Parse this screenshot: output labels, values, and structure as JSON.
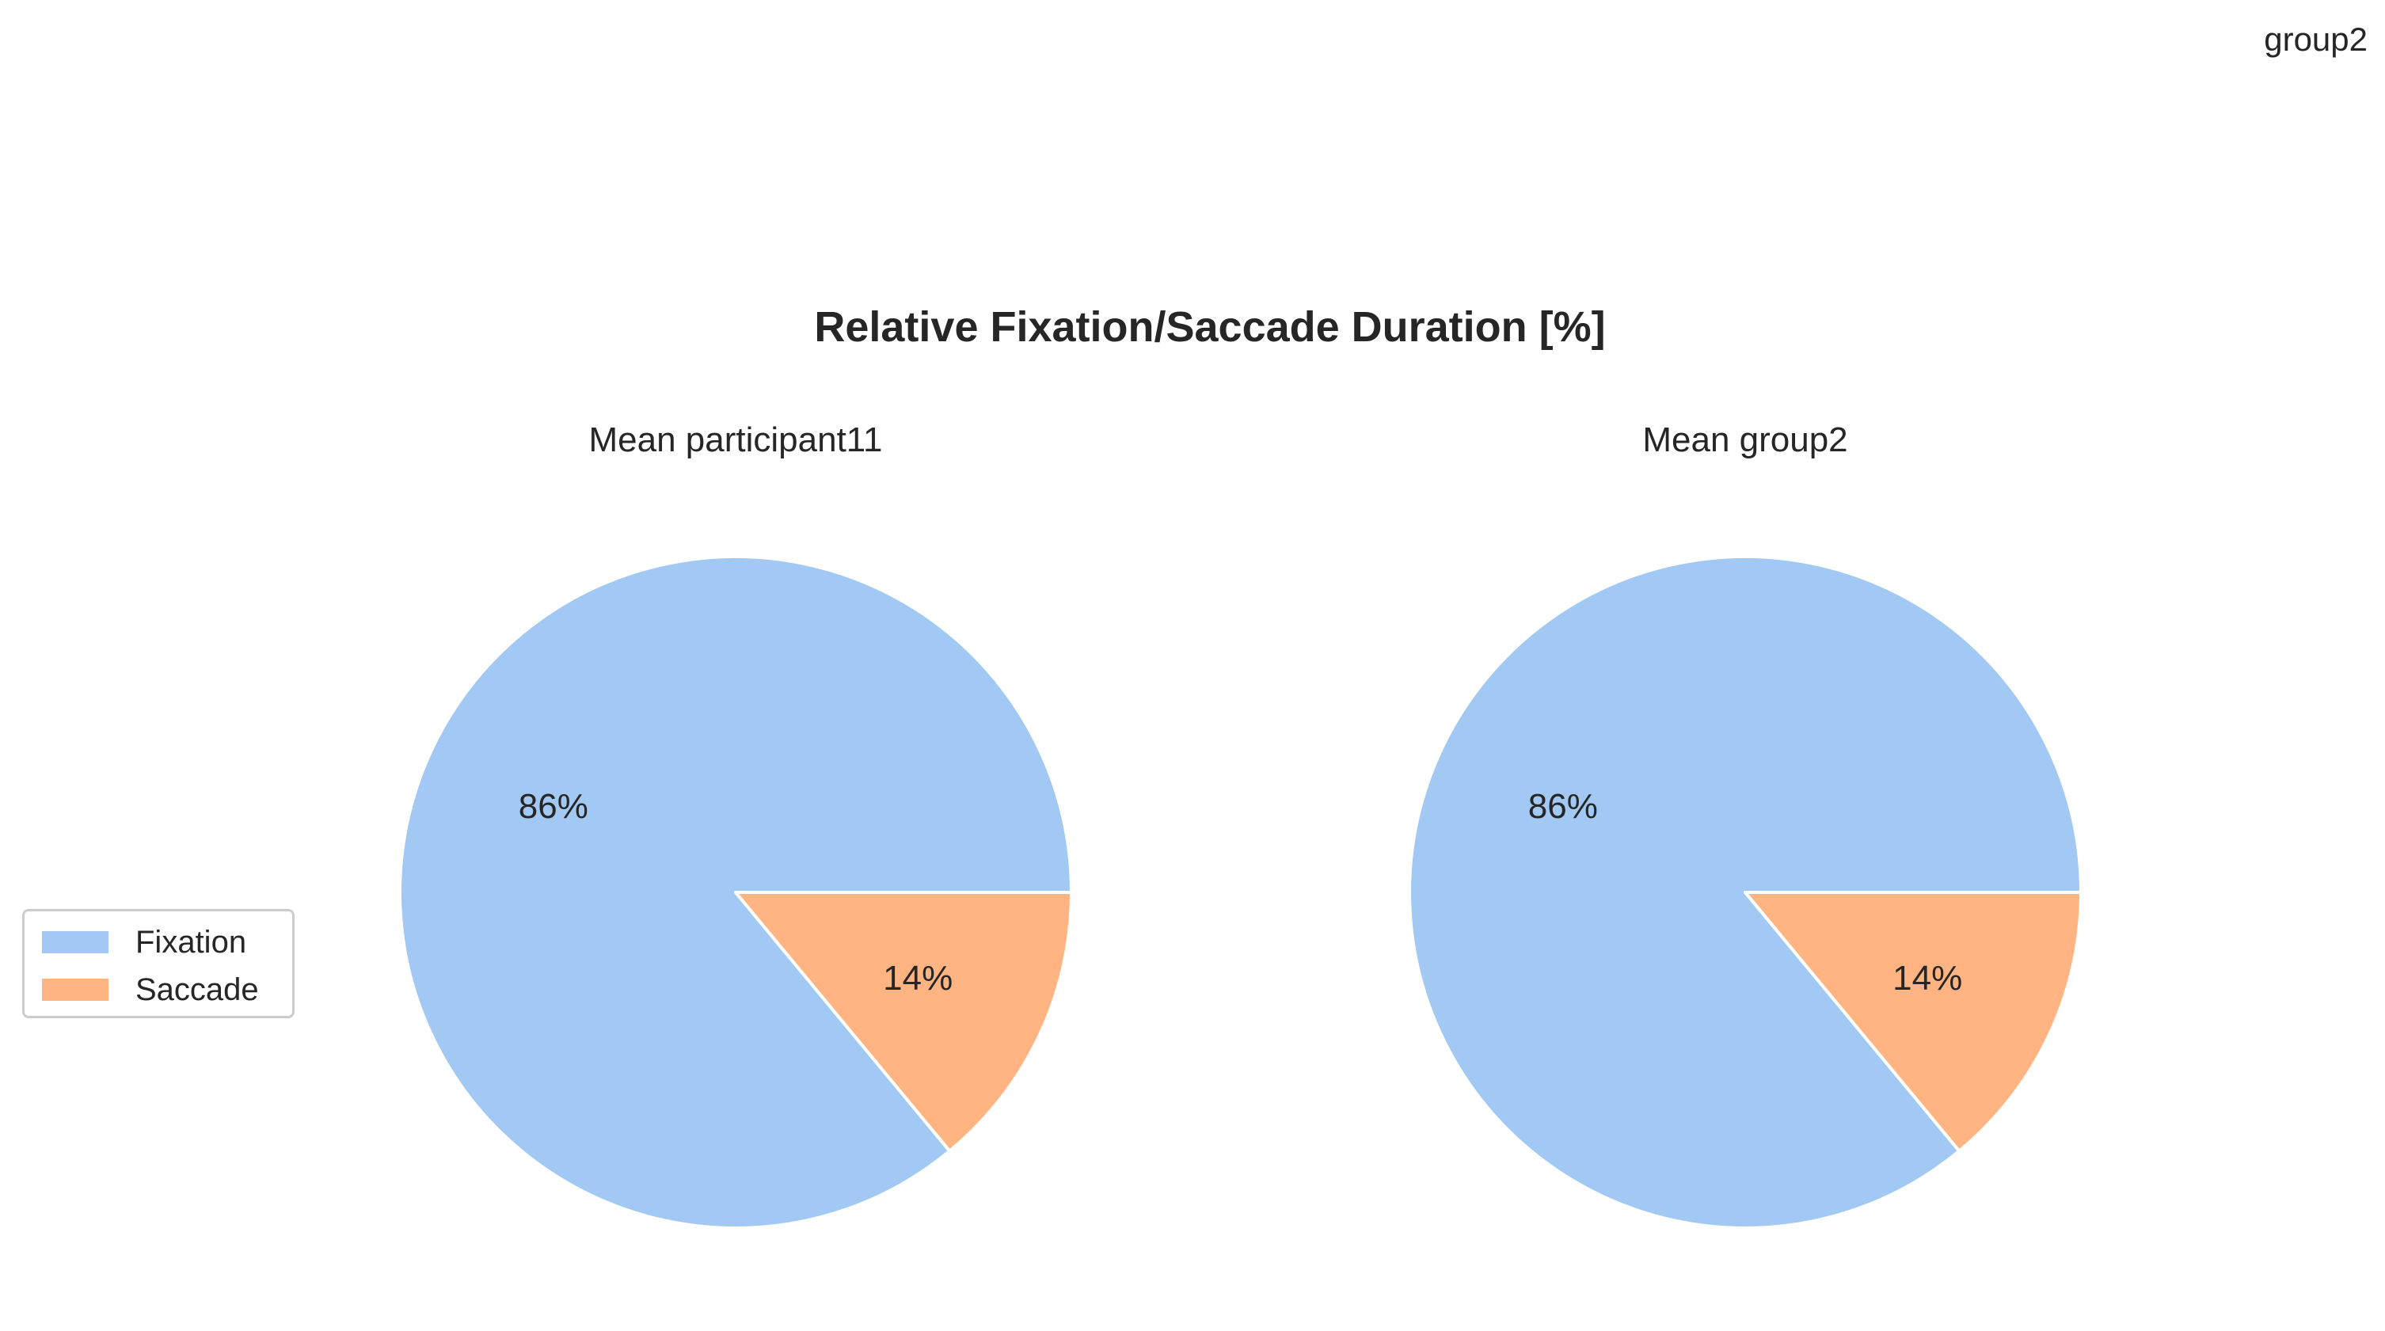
{
  "corner_label": "group2",
  "title": "Relative Fixation/Saccade Duration [%]",
  "colors": {
    "fixation": "#a1c9f4",
    "saccade": "#ffb482",
    "wedge_edge": "#ffffff"
  },
  "legend": {
    "entries": [
      {
        "label": "Fixation",
        "color": "#a1c9f4"
      },
      {
        "label": "Saccade",
        "color": "#ffb482"
      }
    ]
  },
  "chart_data": [
    {
      "type": "pie",
      "title": "Mean participant11",
      "slices": [
        {
          "label": "Fixation",
          "value": 86,
          "display": "86%",
          "color": "#a1c9f4"
        },
        {
          "label": "Saccade",
          "value": 14,
          "display": "14%",
          "color": "#ffb482"
        }
      ],
      "start_angle_deg": 0,
      "direction": "counterclockwise",
      "legend_placement": "left"
    },
    {
      "type": "pie",
      "title": "Mean group2",
      "slices": [
        {
          "label": "Fixation",
          "value": 86,
          "display": "86%",
          "color": "#a1c9f4"
        },
        {
          "label": "Saccade",
          "value": 14,
          "display": "14%",
          "color": "#ffb482"
        }
      ],
      "start_angle_deg": 0,
      "direction": "counterclockwise"
    }
  ]
}
